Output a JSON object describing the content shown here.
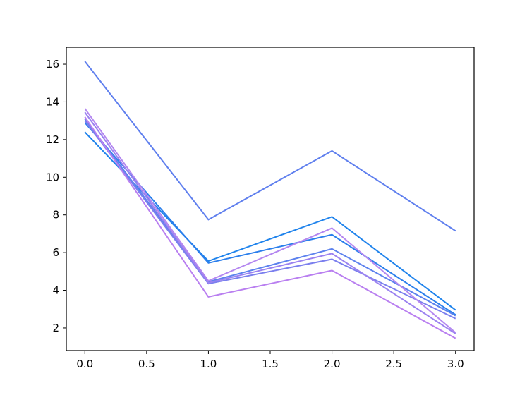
{
  "chart_data": {
    "type": "line",
    "title": "",
    "xlabel": "",
    "ylabel": "",
    "xlim": [
      -0.15,
      3.15
    ],
    "ylim": [
      0.8,
      16.9
    ],
    "x_ticks": [
      0.0,
      0.5,
      1.0,
      1.5,
      2.0,
      2.5,
      3.0
    ],
    "x_tick_labels": [
      "0.0",
      "0.5",
      "1.0",
      "1.5",
      "2.0",
      "2.5",
      "3.0"
    ],
    "y_ticks": [
      2,
      4,
      6,
      8,
      10,
      12,
      14,
      16
    ],
    "y_tick_labels": [
      "2",
      "4",
      "6",
      "8",
      "10",
      "12",
      "14",
      "16"
    ],
    "grid": false,
    "legend": "none",
    "x": [
      0,
      1,
      2,
      3
    ],
    "series": [
      {
        "values": [
          16.15,
          7.75,
          11.4,
          7.15
        ],
        "color": "#5f7fee"
      },
      {
        "values": [
          12.4,
          5.55,
          7.9,
          2.95
        ],
        "color": "#1f83ec"
      },
      {
        "values": [
          12.9,
          5.45,
          6.95,
          2.7
        ],
        "color": "#2b7fec"
      },
      {
        "values": [
          13.1,
          4.45,
          6.2,
          2.65
        ],
        "color": "#5d82ee"
      },
      {
        "values": [
          13.0,
          4.35,
          5.65,
          2.5
        ],
        "color": "#7b7fee"
      },
      {
        "values": [
          13.65,
          4.5,
          7.3,
          1.75
        ],
        "color": "#b487f0"
      },
      {
        "values": [
          13.45,
          4.4,
          5.95,
          1.7
        ],
        "color": "#9b82f0"
      },
      {
        "values": [
          13.2,
          3.65,
          5.05,
          1.45
        ],
        "color": "#b97ff0"
      }
    ]
  }
}
